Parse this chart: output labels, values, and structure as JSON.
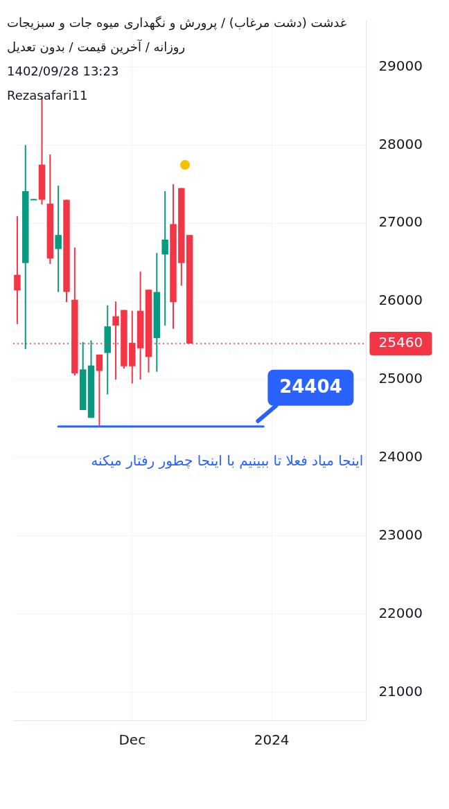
{
  "chart_data": {
    "type": "candlestick",
    "title": "غدشت (دشت مرغاب) / پرورش و نگهداری میوه جات و سبزیجات",
    "subtitle": "روزانه / آخرین قیمت / بدون تعدیل",
    "categories": [
      null,
      null,
      null,
      null,
      null,
      null,
      null,
      null,
      null,
      null,
      null,
      null,
      null,
      null,
      "Dec",
      null,
      null,
      null,
      null,
      null,
      null,
      null,
      null,
      null,
      null,
      null,
      null,
      null,
      null,
      null,
      null,
      "2024",
      null,
      null,
      null,
      null,
      null,
      null,
      null,
      null,
      null,
      null,
      null
    ],
    "ohlc": [
      [
        26340,
        27090,
        25710,
        26140
      ],
      [
        26490,
        28000,
        25390,
        27410
      ],
      [
        27300,
        27310,
        27300,
        27310
      ],
      [
        27750,
        28620,
        27240,
        27300
      ],
      [
        27250,
        27880,
        26480,
        26550
      ],
      [
        26670,
        27480,
        26120,
        26850
      ],
      [
        27300,
        27300,
        25990,
        26120
      ],
      [
        26020,
        26690,
        25050,
        25080
      ],
      [
        24610,
        25480,
        24610,
        25130
      ],
      [
        24510,
        25500,
        24510,
        25180
      ],
      [
        25320,
        25320,
        24404,
        25110
      ],
      [
        25340,
        25950,
        24810,
        25680
      ],
      [
        25810,
        26000,
        25000,
        25690
      ],
      [
        25890,
        25890,
        25140,
        25170
      ],
      [
        25470,
        25880,
        24950,
        25170
      ],
      [
        25880,
        26380,
        25000,
        25400
      ],
      [
        26150,
        26150,
        25090,
        25290
      ],
      [
        25530,
        26620,
        25100,
        26120
      ],
      [
        26600,
        27410,
        25690,
        26790
      ],
      [
        26990,
        27500,
        25650,
        25990
      ],
      [
        27450,
        27450,
        26200,
        26490
      ],
      [
        26850,
        26850,
        25460,
        25460
      ],
      null,
      null,
      null,
      null,
      null,
      null,
      null,
      null,
      null,
      null,
      null,
      null,
      null,
      null,
      null,
      null,
      null,
      null,
      null,
      null,
      null
    ],
    "colors": [
      "#f23645",
      "#089981",
      "#089981",
      "#f23645",
      "#f23645",
      "#089981",
      "#f23645",
      "#f23645",
      "#089981",
      "#089981",
      "#f23645",
      "#089981",
      "#f23645",
      "#f23645",
      "#f23645",
      "#f23645",
      "#f23645",
      "#089981",
      "#089981",
      "#f23645",
      "#f23645",
      "#f23645",
      null,
      null,
      null,
      null,
      null,
      null,
      null,
      null,
      null,
      null,
      null,
      null,
      null,
      null,
      null,
      null,
      null,
      null,
      null,
      null,
      null
    ],
    "series": [
      {
        "type": "line",
        "color": "#2962ff",
        "values": [
          null,
          null,
          null,
          null,
          null,
          24400,
          null,
          null,
          null,
          null,
          null,
          null,
          null,
          null,
          null,
          null,
          null,
          null,
          null,
          null,
          null,
          null,
          null,
          null,
          null,
          null,
          null,
          null,
          null,
          null,
          24400,
          null,
          null,
          null,
          null,
          null,
          null,
          null,
          null,
          null,
          null,
          null,
          null
        ]
      }
    ],
    "marker": "none",
    "ylim": [
      20640,
      29590
    ],
    "yticks": [
      21000,
      22000,
      23000,
      24000,
      25000,
      26000,
      27000,
      28000,
      29000
    ],
    "ref_lines": [
      {
        "axis": "y",
        "value": 25460,
        "label": "25460",
        "color": "#f23645",
        "line_style": "dotted"
      }
    ],
    "annotations": [
      "24404",
      "اینجا میاد فعلا تا ببینیم با اینجا چطور رفتار میکنه",
      "1402/09/28 13:23",
      "Rezasafari11"
    ],
    "grid": true,
    "legend": false
  }
}
